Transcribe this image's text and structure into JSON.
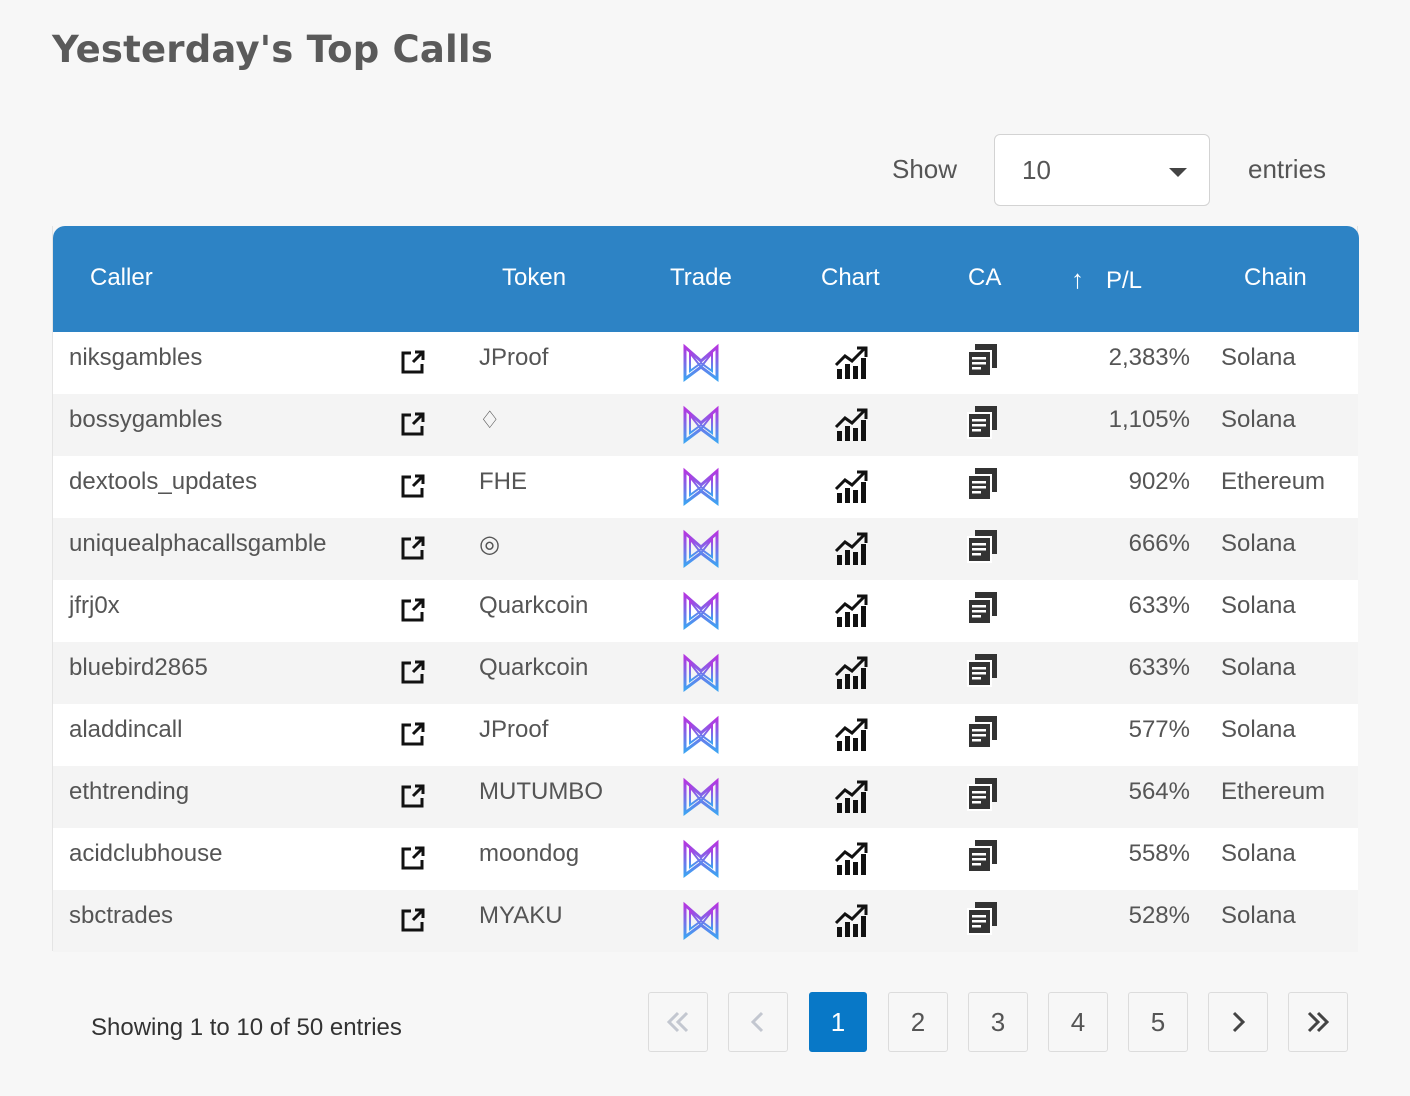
{
  "page": {
    "title": "Yesterday's Top Calls"
  },
  "length_control": {
    "show_label": "Show",
    "value": "10",
    "entries_label": "entries"
  },
  "table": {
    "header_color": "#2d83c5",
    "columns": {
      "caller": "Caller",
      "token": "Token",
      "trade": "Trade",
      "chart": "Chart",
      "ca": "CA",
      "pl": "P/L",
      "chain": "Chain"
    },
    "sort": {
      "column": "pl",
      "arrow": "↑"
    },
    "rows": [
      {
        "caller": "niksgambles",
        "token": "JProof",
        "pl": "2,383%",
        "chain": "Solana"
      },
      {
        "caller": "bossygambles",
        "token": "♢",
        "pl": "1,105%",
        "chain": "Solana"
      },
      {
        "caller": "dextools_updates",
        "token": "FHE",
        "pl": "902%",
        "chain": "Ethereum"
      },
      {
        "caller": "uniquealphacallsgamble",
        "token": "◎",
        "pl": "666%",
        "chain": "Solana"
      },
      {
        "caller": "jfrj0x",
        "token": "Quarkcoin",
        "pl": "633%",
        "chain": "Solana"
      },
      {
        "caller": "bluebird2865",
        "token": "Quarkcoin",
        "pl": "633%",
        "chain": "Solana"
      },
      {
        "caller": "aladdincall",
        "token": "JProof",
        "pl": "577%",
        "chain": "Solana"
      },
      {
        "caller": "ethtrending",
        "token": "MUTUMBO",
        "pl": "564%",
        "chain": "Ethereum"
      },
      {
        "caller": "acidclubhouse",
        "token": "moondog",
        "pl": "558%",
        "chain": "Solana"
      },
      {
        "caller": "sbctrades",
        "token": "MYAKU",
        "pl": "528%",
        "chain": "Solana"
      }
    ],
    "icons": {
      "link": "external-link-icon",
      "trade": "trade-logo-icon",
      "chart": "chart-icon",
      "ca": "copy-icon"
    }
  },
  "footer": {
    "info": "Showing 1 to 10 of 50 entries",
    "pagination": {
      "pages": [
        "1",
        "2",
        "3",
        "4",
        "5"
      ],
      "active_page": "1",
      "first_icon": "double-chevron-left-icon",
      "prev_icon": "chevron-left-icon",
      "next_icon": "chevron-right-icon",
      "last_icon": "double-chevron-right-icon",
      "active_color": "#0878c7"
    }
  }
}
